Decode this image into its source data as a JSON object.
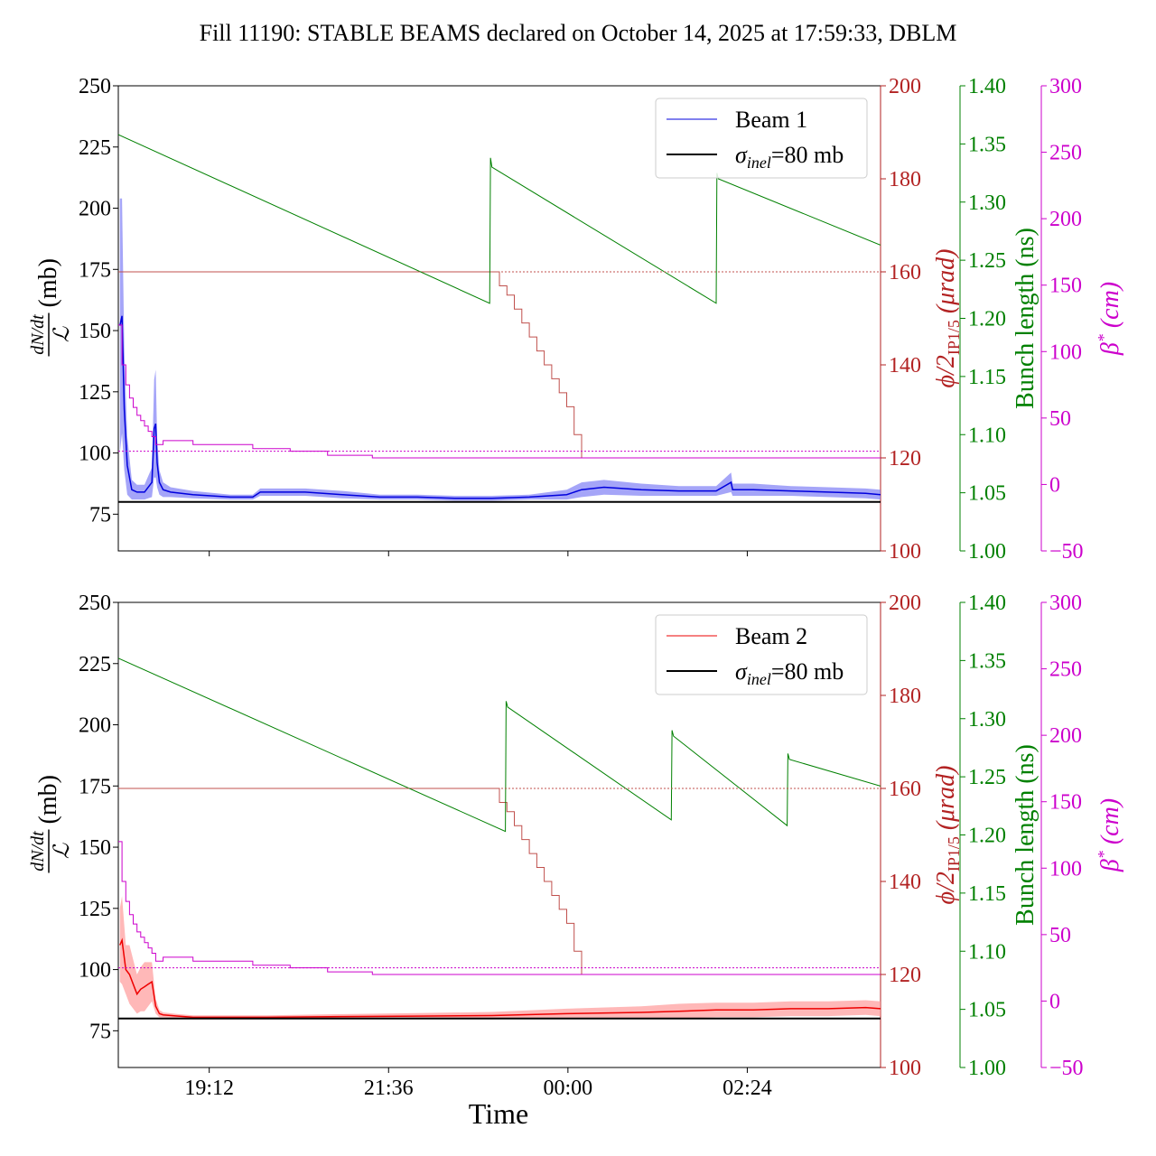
{
  "title": "Fill 11190: STABLE BEAMS declared on October 14, 2025 at 17:59:33, DBLM",
  "xlabel": "Time",
  "x_ticks": [
    "19:12",
    "21:36",
    "00:00",
    "02:24"
  ],
  "axis_labels": {
    "left_num": "dN/dt",
    "left_den": "ℒ",
    "left_unit": "(mb)",
    "red_phi": "ϕ/2",
    "red_sub": "IP1/5",
    "red_unit": "(μrad)",
    "green": "Bunch length (ns)",
    "magenta_beta": "β",
    "magenta_unit": "(cm)"
  },
  "colors": {
    "beam1": "#0000dd",
    "beam1_band": "#7f7ff5",
    "beam2": "#ee0000",
    "beam2_band": "#ff9a9a",
    "sigma": "#000000",
    "crossing": "#c0504d",
    "crossing_axis": "#b22222",
    "bunch": "#008000",
    "beta": "#cc00cc"
  },
  "chart_data": [
    {
      "type": "line",
      "panel": "top",
      "x_unit": "hours since 17:59 (Oct 14, 2025)",
      "xlim": [
        0,
        10.2
      ],
      "axes": {
        "left": {
          "ylim": [
            60,
            250
          ],
          "ticks": [
            75,
            100,
            125,
            150,
            175,
            200,
            225,
            250
          ]
        },
        "crossing_angle": {
          "ylim": [
            100,
            200
          ],
          "ticks": [
            100,
            120,
            140,
            160,
            180,
            200
          ]
        },
        "bunch_length": {
          "ylim": [
            1.0,
            1.4
          ],
          "ticks": [
            1.0,
            1.05,
            1.1,
            1.15,
            1.2,
            1.25,
            1.3,
            1.35,
            1.4
          ]
        },
        "beta_star": {
          "ylim": [
            -50,
            300
          ],
          "ticks": [
            -50,
            0,
            50,
            100,
            150,
            200,
            250,
            300
          ]
        }
      },
      "legend": {
        "position": "upper-right",
        "entries": [
          "Beam 1",
          "σinel=80 mb"
        ]
      },
      "series": [
        {
          "name": "Beam 1",
          "axis": "left",
          "kind": "line_band",
          "x": [
            0.02,
            0.05,
            0.08,
            0.12,
            0.18,
            0.25,
            0.35,
            0.45,
            0.48,
            0.5,
            0.52,
            0.55,
            0.6,
            0.7,
            1.0,
            1.5,
            1.8,
            1.9,
            2.5,
            3.0,
            3.5,
            4.0,
            4.5,
            5.0,
            5.5,
            6.0,
            6.2,
            6.5,
            7.0,
            7.5,
            8.0,
            8.2,
            8.22,
            8.5,
            9.0,
            9.5,
            10.0,
            10.2
          ],
          "y": [
            152,
            156,
            118,
            95,
            85,
            84,
            84,
            88,
            110,
            112,
            96,
            88,
            85,
            84,
            83,
            82,
            82,
            84,
            84,
            83,
            82,
            82,
            81.5,
            81.5,
            82,
            83,
            85,
            86,
            85,
            84.5,
            84.5,
            88,
            85,
            85,
            84.5,
            84,
            83.5,
            83
          ],
          "band_half_width": [
            52,
            48,
            25,
            12,
            4,
            3,
            3,
            6,
            20,
            22,
            10,
            5,
            3,
            2,
            1.5,
            1,
            1,
            1.5,
            1.5,
            1.5,
            1,
            1,
            1,
            1,
            1,
            2,
            3,
            3,
            2.5,
            2,
            2,
            4,
            2.5,
            2.5,
            2,
            2,
            2,
            2
          ]
        },
        {
          "name": "σinel=80 mb",
          "axis": "left",
          "kind": "hline",
          "y": 80
        },
        {
          "name": "Crossing angle",
          "axis": "crossing_angle",
          "kind": "step",
          "x": [
            0,
            5.0,
            5.1,
            5.2,
            5.3,
            5.4,
            5.5,
            5.6,
            5.7,
            5.8,
            5.9,
            6.0,
            6.1,
            6.2,
            10.2
          ],
          "y": [
            160,
            160,
            157,
            155,
            152,
            149,
            146,
            143,
            140,
            137,
            134,
            131,
            125,
            120,
            120
          ]
        },
        {
          "name": "Bunch length",
          "axis": "bunch_length",
          "kind": "line",
          "x": [
            0.0,
            4.97,
            4.98,
            5.0,
            8.0,
            8.01,
            8.03,
            10.2
          ],
          "y": [
            1.358,
            1.213,
            1.338,
            1.33,
            1.213,
            1.325,
            1.32,
            1.263
          ]
        },
        {
          "name": "Beta star",
          "axis": "beta_star",
          "kind": "step",
          "x": [
            0.0,
            0.05,
            0.1,
            0.15,
            0.2,
            0.25,
            0.3,
            0.35,
            0.4,
            0.45,
            0.5,
            0.6,
            1.0,
            1.8,
            2.3,
            2.8,
            3.4,
            4.2,
            10.2
          ],
          "y": [
            120,
            90,
            75,
            65,
            58,
            52,
            48,
            44,
            40,
            36,
            30,
            33,
            30,
            27,
            25,
            22,
            20,
            20,
            20
          ]
        },
        {
          "name": "Reference 160",
          "axis": "crossing_angle",
          "kind": "hline",
          "y": 160
        },
        {
          "name": "Reference 25",
          "axis": "beta_star",
          "kind": "hline",
          "y": 25
        }
      ]
    },
    {
      "type": "line",
      "panel": "bottom",
      "x_unit": "hours since 17:59 (Oct 14, 2025)",
      "xlim": [
        0,
        10.2
      ],
      "axes": {
        "left": {
          "ylim": [
            60,
            250
          ],
          "ticks": [
            75,
            100,
            125,
            150,
            175,
            200,
            225,
            250
          ]
        },
        "crossing_angle": {
          "ylim": [
            100,
            200
          ],
          "ticks": [
            100,
            120,
            140,
            160,
            180,
            200
          ]
        },
        "bunch_length": {
          "ylim": [
            1.0,
            1.4
          ],
          "ticks": [
            1.0,
            1.05,
            1.1,
            1.15,
            1.2,
            1.25,
            1.3,
            1.35,
            1.4
          ]
        },
        "beta_star": {
          "ylim": [
            -50,
            300
          ],
          "ticks": [
            -50,
            0,
            50,
            100,
            150,
            200,
            250,
            300
          ]
        }
      },
      "legend": {
        "position": "upper-right",
        "entries": [
          "Beam 2",
          "σinel=80 mb"
        ]
      },
      "series": [
        {
          "name": "Beam 2",
          "axis": "left",
          "kind": "line_band",
          "x": [
            0.02,
            0.05,
            0.1,
            0.15,
            0.2,
            0.25,
            0.3,
            0.35,
            0.4,
            0.45,
            0.5,
            0.55,
            0.6,
            0.8,
            1.0,
            1.5,
            2.0,
            3.0,
            4.0,
            5.0,
            6.0,
            7.0,
            7.5,
            8.0,
            8.5,
            9.0,
            9.5,
            10.0,
            10.2
          ],
          "y": [
            110,
            112,
            100,
            98,
            94,
            90,
            92,
            93,
            94,
            95,
            85,
            82,
            81.5,
            81,
            80.5,
            80.5,
            80.5,
            80.8,
            81,
            81.2,
            82,
            82.5,
            83,
            83.5,
            83.5,
            84,
            84,
            84.5,
            84
          ],
          "band_half_width": [
            15,
            18,
            10,
            12,
            10,
            8,
            9,
            10,
            9,
            8,
            3,
            1.5,
            1,
            0.8,
            0.8,
            0.8,
            0.8,
            1,
            1.2,
            1.5,
            2,
            2.5,
            3,
            3,
            3,
            3,
            3,
            3,
            3
          ]
        },
        {
          "name": "σinel=80 mb",
          "axis": "left",
          "kind": "hline",
          "y": 80
        },
        {
          "name": "Crossing angle",
          "axis": "crossing_angle",
          "kind": "step",
          "x": [
            0,
            5.0,
            5.1,
            5.2,
            5.3,
            5.4,
            5.5,
            5.6,
            5.7,
            5.8,
            5.9,
            6.0,
            6.1,
            6.2,
            10.2
          ],
          "y": [
            160,
            160,
            157,
            155,
            152,
            149,
            146,
            143,
            140,
            137,
            134,
            131,
            125,
            120,
            120
          ]
        },
        {
          "name": "Bunch length",
          "axis": "bunch_length",
          "kind": "line",
          "x": [
            0.0,
            5.18,
            5.19,
            5.21,
            7.4,
            7.41,
            7.43,
            8.95,
            8.96,
            8.98,
            10.2
          ],
          "y": [
            1.352,
            1.203,
            1.315,
            1.31,
            1.213,
            1.29,
            1.285,
            1.208,
            1.27,
            1.265,
            1.242
          ]
        },
        {
          "name": "Beta star",
          "axis": "beta_star",
          "kind": "step",
          "x": [
            0.0,
            0.05,
            0.1,
            0.15,
            0.2,
            0.25,
            0.3,
            0.35,
            0.4,
            0.45,
            0.5,
            0.6,
            1.0,
            1.8,
            2.3,
            2.8,
            3.4,
            4.2,
            10.2
          ],
          "y": [
            120,
            90,
            75,
            65,
            58,
            52,
            48,
            44,
            40,
            36,
            30,
            33,
            30,
            27,
            25,
            22,
            20,
            20,
            20
          ]
        },
        {
          "name": "Reference 160",
          "axis": "crossing_angle",
          "kind": "hline",
          "y": 160
        },
        {
          "name": "Reference 25",
          "axis": "beta_star",
          "kind": "hline",
          "y": 25
        }
      ]
    }
  ]
}
